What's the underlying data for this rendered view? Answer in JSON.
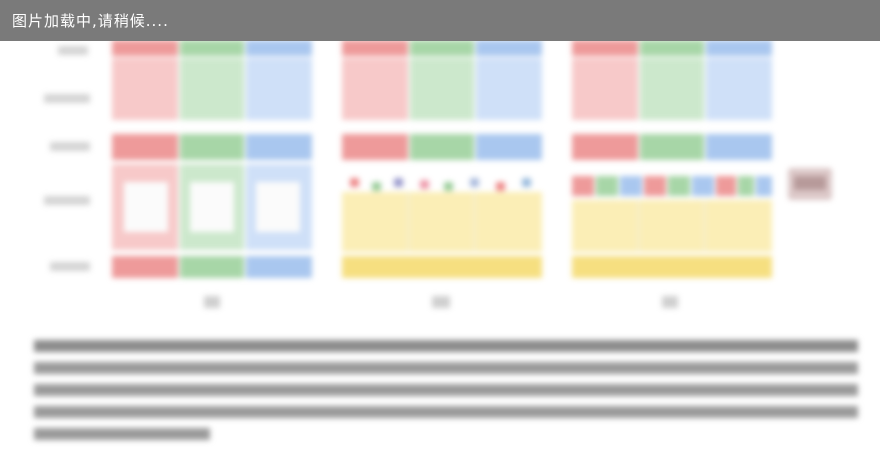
{
  "loading": {
    "text": "图片加载中,请稍候...."
  },
  "colors": {
    "loading_bar": "#7a7a7a",
    "red": "#f7c9c9",
    "green": "#cce8cc",
    "blue": "#cfe0f8",
    "yellow": "#fbeeb6"
  }
}
